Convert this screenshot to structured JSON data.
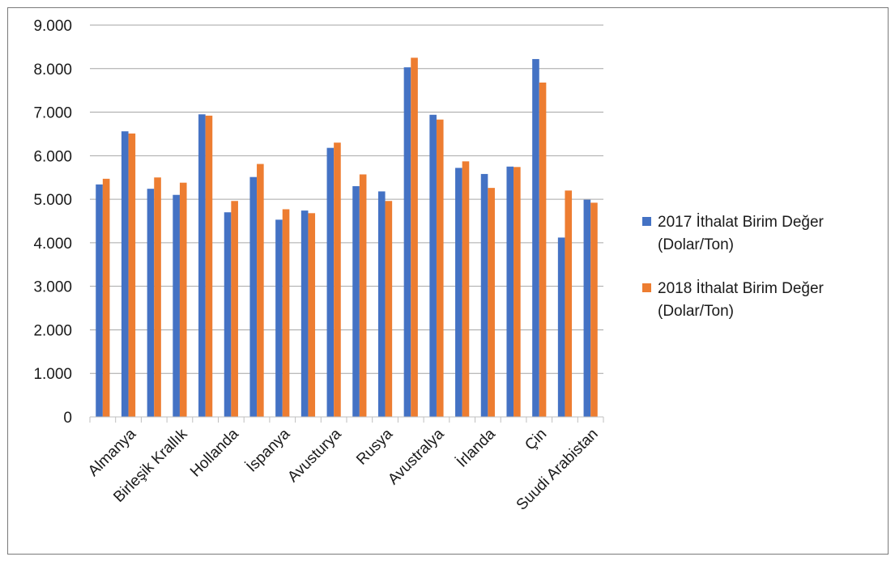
{
  "chart_data": {
    "type": "bar",
    "title": "",
    "xlabel": "",
    "ylabel": "",
    "ylim": [
      0,
      9000
    ],
    "yticks": [
      {
        "value": 0,
        "label": "0"
      },
      {
        "value": 1000,
        "label": "1.000"
      },
      {
        "value": 2000,
        "label": "2.000"
      },
      {
        "value": 3000,
        "label": "3.000"
      },
      {
        "value": 4000,
        "label": "4.000"
      },
      {
        "value": 5000,
        "label": "5.000"
      },
      {
        "value": 6000,
        "label": "6.000"
      },
      {
        "value": 7000,
        "label": "7.000"
      },
      {
        "value": 8000,
        "label": "8.000"
      },
      {
        "value": 9000,
        "label": "9.000"
      }
    ],
    "grid": "horizontal",
    "legend_position": "right",
    "categories": [
      "",
      "Almanya",
      "",
      "Birleşik Krallık",
      "",
      "Hollanda",
      "",
      "İspanya",
      "",
      "Avusturya",
      "",
      "Rusya",
      "",
      "Avustralya",
      "",
      "İrlanda",
      "",
      "Çin",
      "",
      "Suudi Arabistan"
    ],
    "series": [
      {
        "name": "2017 İthalat Birim Değer (Dolar/Ton)",
        "legend_lines": [
          "2017 İthalat Birim Değer",
          "(Dolar/Ton)"
        ],
        "color": "#4472C4",
        "values": [
          5340,
          6560,
          5240,
          5100,
          6950,
          4700,
          5510,
          4530,
          4740,
          6180,
          5300,
          5180,
          8030,
          6940,
          5720,
          5580,
          5750,
          8220,
          4120,
          4990
        ]
      },
      {
        "name": "2018 İthalat Birim Değer (Dolar/Ton)",
        "legend_lines": [
          "2018 İthalat Birim Değer",
          "(Dolar/Ton)"
        ],
        "color": "#ED7D31",
        "values": [
          5470,
          6510,
          5500,
          5380,
          6920,
          4960,
          5810,
          4770,
          4680,
          6300,
          5570,
          4960,
          8250,
          6830,
          5870,
          5260,
          5740,
          7680,
          5200,
          4920
        ]
      }
    ],
    "axis_color": "#bfbfbf",
    "grid_color": "#a6a6a6"
  }
}
